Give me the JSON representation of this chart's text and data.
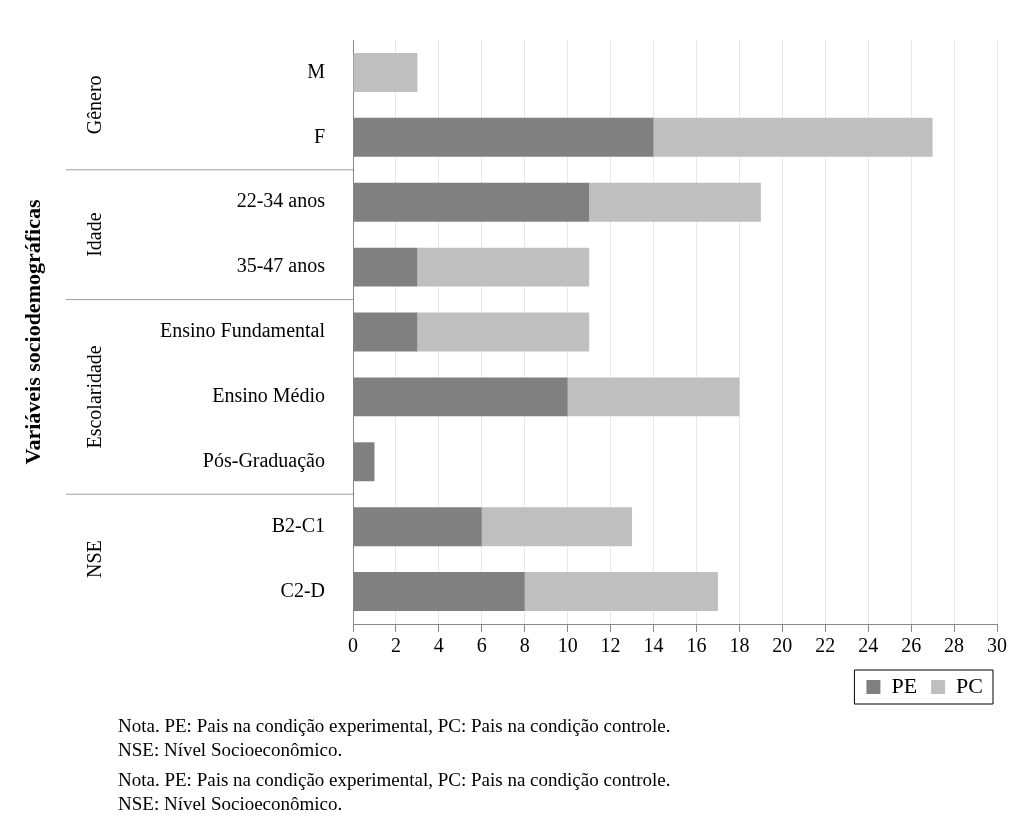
{
  "chart_data": {
    "type": "bar",
    "orientation": "horizontal",
    "stacked": true,
    "categories": [
      "M",
      "F",
      "22-34 anos",
      "35-47 anos",
      "Ensino Fundamental",
      "Ensino Médio",
      "Pós-Graduação",
      "B2-C1",
      "C2-D"
    ],
    "series": [
      {
        "name": "PE",
        "color": "#808080",
        "values": [
          0,
          14,
          11,
          3,
          3,
          10,
          1,
          6,
          8
        ]
      },
      {
        "name": "PC",
        "color": "#bfbfbf",
        "values": [
          3,
          13,
          8,
          8,
          8,
          8,
          0,
          7,
          9
        ]
      }
    ],
    "xlim": [
      0,
      30
    ],
    "xticks": [
      0,
      2,
      4,
      6,
      8,
      10,
      12,
      14,
      16,
      18,
      20,
      22,
      24,
      26,
      28,
      30
    ],
    "grid": "x",
    "legend": "bottom right",
    "annotations": [
      "Variáveis sociodemográficas",
      "Gênero",
      "Idade",
      "Escolaridade",
      "NSE",
      "Nota. PE: Pais na condição experimental, PC: Pais na condição controle. NSE: Nível Socioeconômico.",
      "Nota. PE: Pais na condição experimental, PC: Pais na condição controle. NSE: Nível Socioeconômico."
    ]
  }
}
